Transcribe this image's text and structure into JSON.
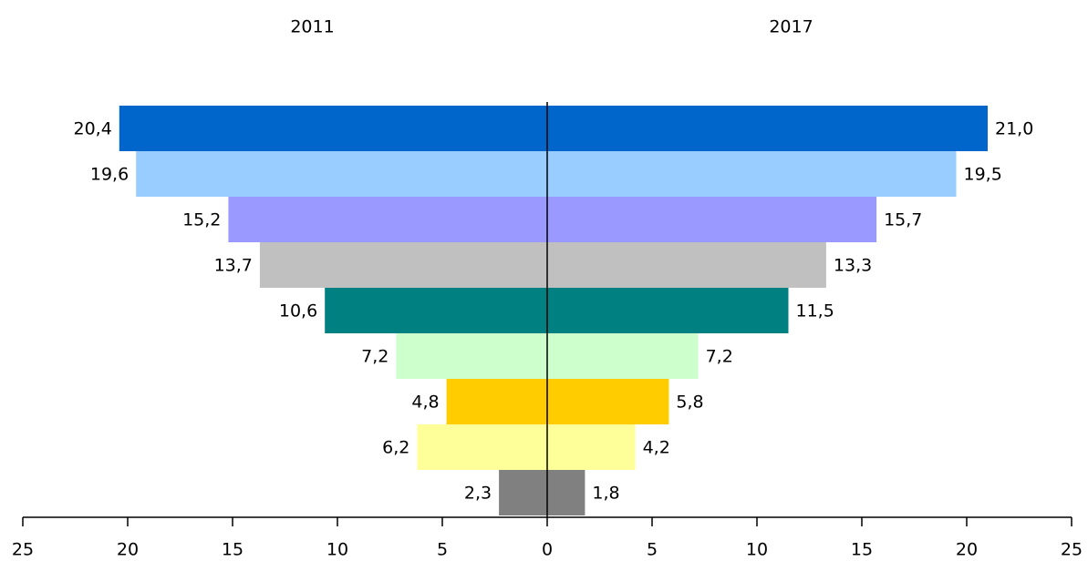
{
  "chart_data": {
    "type": "butterfly",
    "categories": [
      null,
      null,
      null,
      null,
      null,
      null,
      null,
      null,
      null
    ],
    "colors": [
      "#0066cc",
      "#99ccff",
      "#9999ff",
      "#c0c0c0",
      "#008080",
      "#ccffcc",
      "#ffcc00",
      "#ffff99",
      "#808080"
    ],
    "series": [
      {
        "name": "2011",
        "side": "left",
        "values": [
          20.4,
          19.6,
          15.2,
          13.7,
          10.6,
          7.2,
          4.8,
          6.2,
          2.3
        ],
        "value_labels": [
          "20,4",
          "19,6",
          "15,2",
          "13,7",
          "10,6",
          "7,2",
          "4,8",
          "6,2",
          "2,3"
        ]
      },
      {
        "name": "2017",
        "side": "right",
        "values": [
          21.0,
          19.5,
          15.7,
          13.3,
          11.5,
          7.2,
          5.8,
          4.2,
          1.8
        ],
        "value_labels": [
          "21,0",
          "19,5",
          "15,7",
          "13,3",
          "11,5",
          "7,2",
          "5,8",
          "4,2",
          "1,8"
        ]
      }
    ],
    "xlim": [
      -25,
      25
    ],
    "xticks": [
      {
        "value": -25,
        "label": "25"
      },
      {
        "value": -20,
        "label": "20"
      },
      {
        "value": -15,
        "label": "15"
      },
      {
        "value": -10,
        "label": "10"
      },
      {
        "value": -5,
        "label": "5"
      },
      0,
      5,
      10,
      15,
      20,
      25
    ]
  }
}
